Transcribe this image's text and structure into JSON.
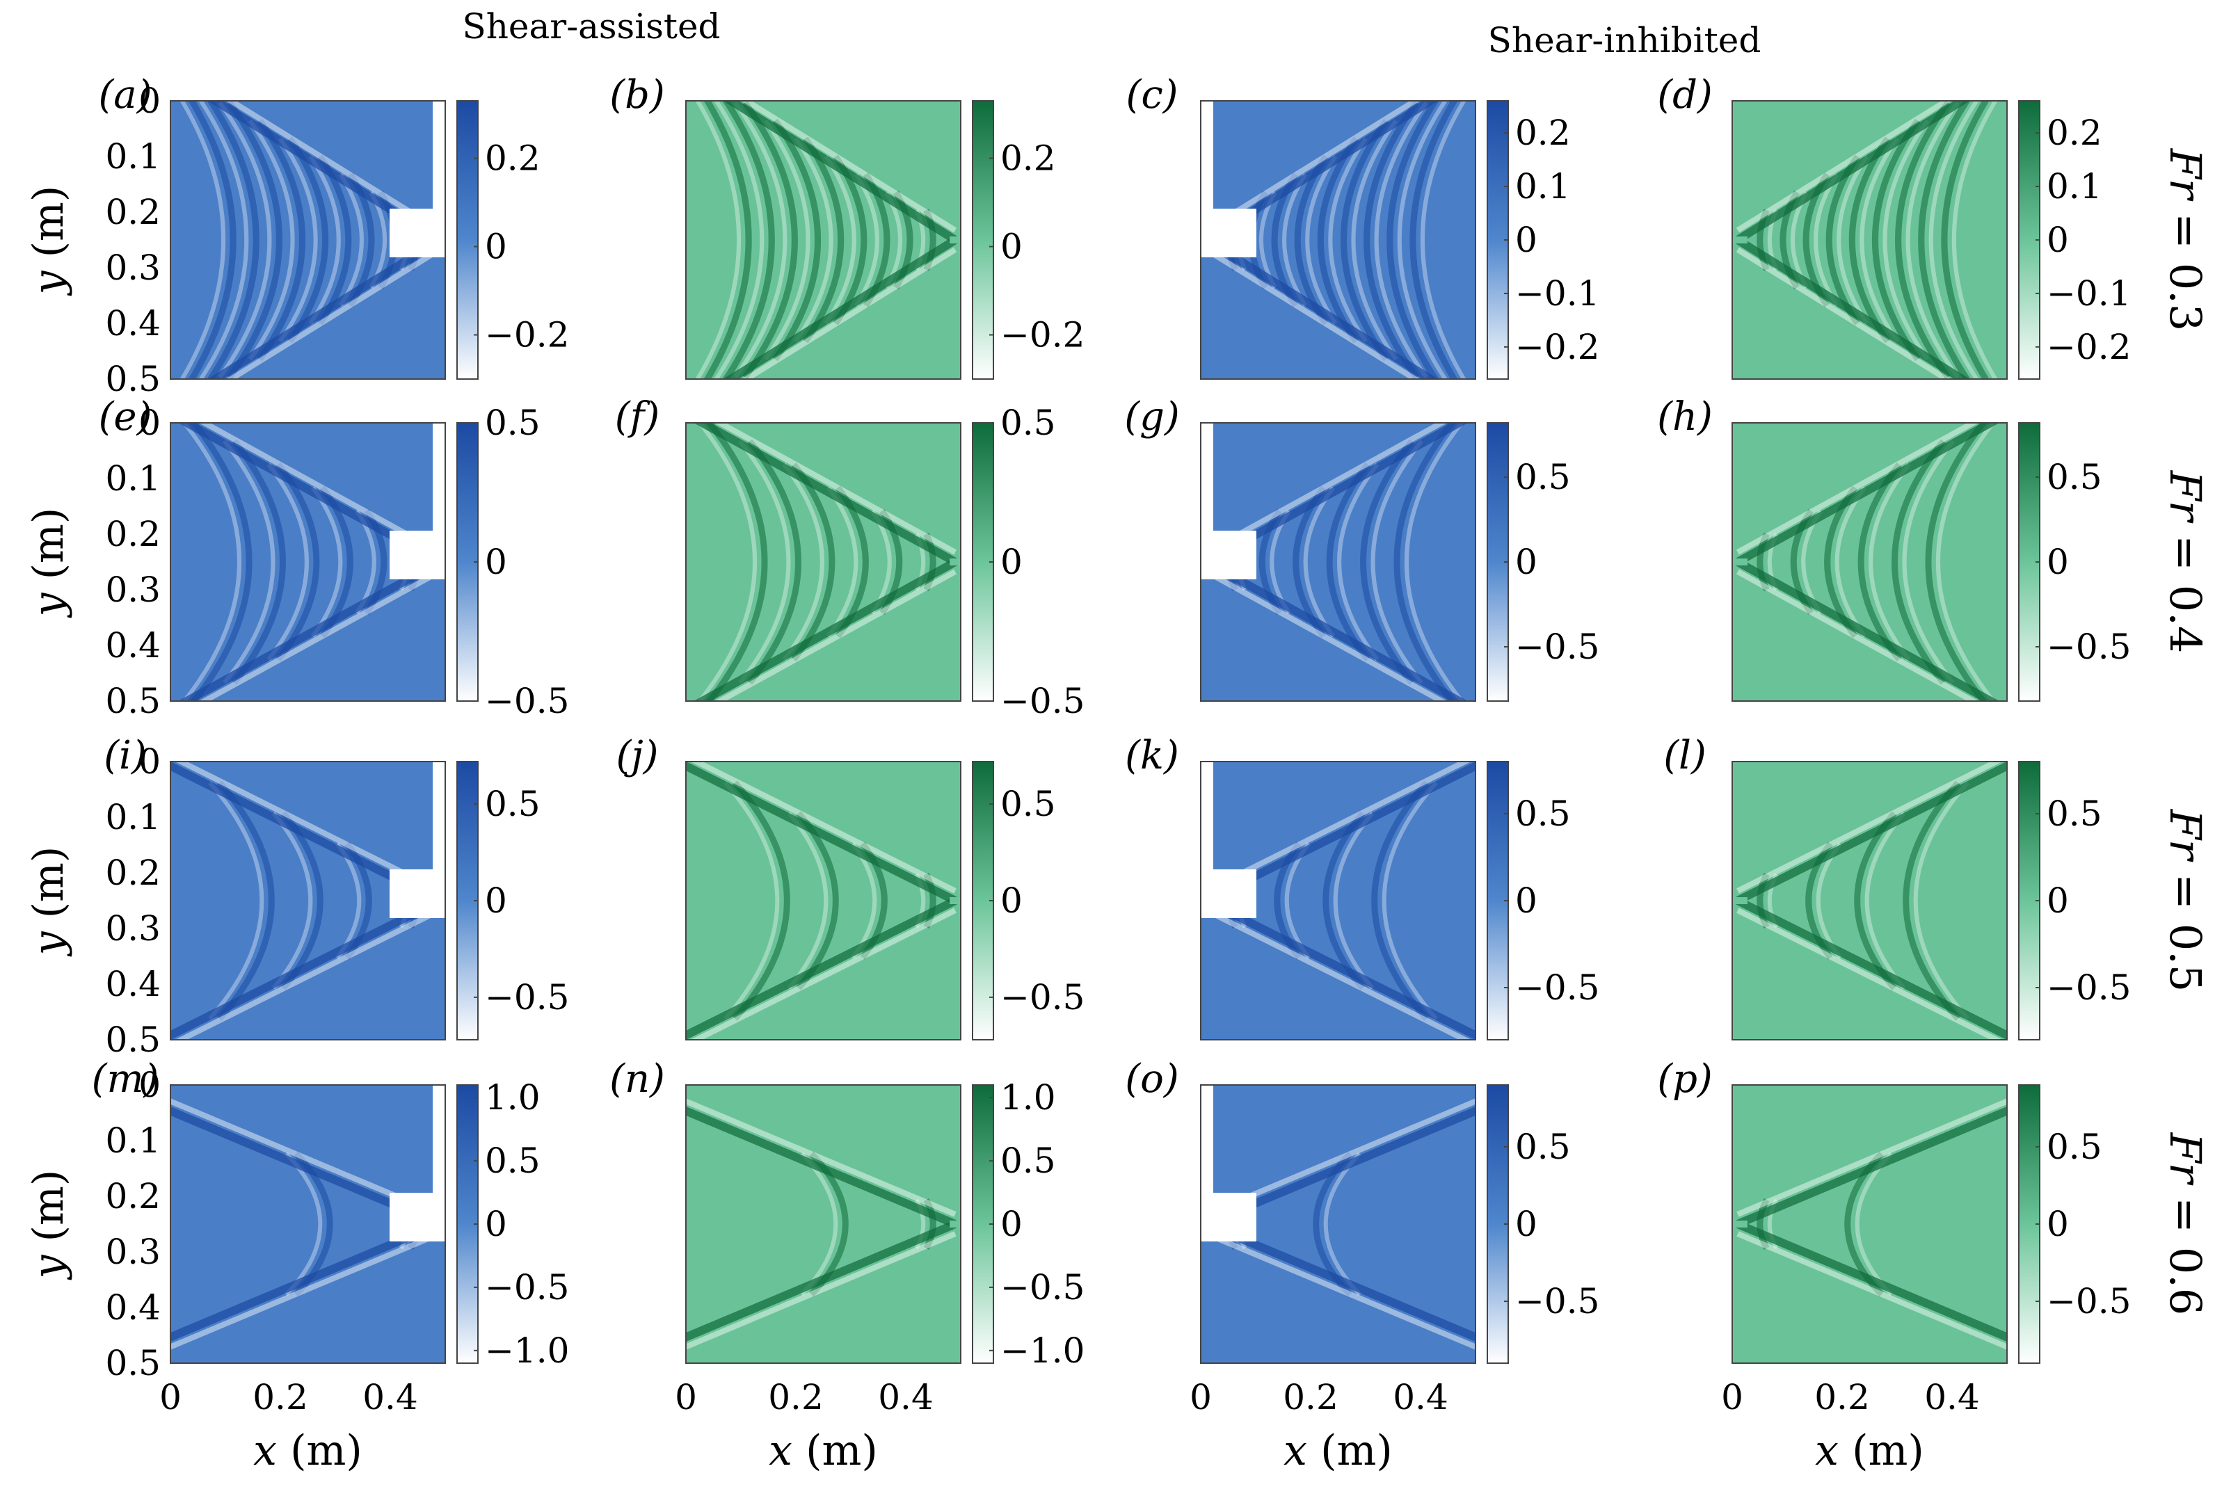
{
  "figure": {
    "column_headers": {
      "left": "Shear-assisted",
      "right": "Shear-inhibited"
    },
    "row_labels": [
      {
        "var": "Fr",
        "text": " = 0.3"
      },
      {
        "var": "Fr",
        "text": " = 0.4"
      },
      {
        "var": "Fr",
        "text": " = 0.5"
      },
      {
        "var": "Fr",
        "text": " = 0.6"
      }
    ],
    "ylabel": {
      "var": "y",
      "unit": " (m)"
    },
    "xlabel": {
      "var": "x",
      "unit": " (m)"
    },
    "colors": {
      "blue_dark": "#1c4aa3",
      "blue_mid": "#4f86cc",
      "blue_light": "#ffffff",
      "green_dark": "#0e6b3a",
      "green_mid": "#6cc59a",
      "green_light": "#ffffff",
      "mask": "#ffffff"
    }
  },
  "chart_data": [
    {
      "label": "(a)",
      "type": "heatmap",
      "kind": "measured",
      "cmap": "blue",
      "Fr": 0.3,
      "flow": "shear-assisted",
      "source_x": 0.49,
      "xlim": [
        0,
        0.5
      ],
      "ylim": [
        0,
        0.5
      ],
      "xticks": [
        "0",
        "0.2",
        "0.4"
      ],
      "yticks": [
        "0",
        "0.1",
        "0.2",
        "0.3",
        "0.4",
        "0.5"
      ],
      "clim": [
        -0.3,
        0.33
      ],
      "cticks": [
        "0.2",
        "0",
        "−0.2"
      ],
      "ctick_values": [
        0.2,
        0,
        -0.2
      ]
    },
    {
      "label": "(b)",
      "type": "heatmap",
      "kind": "simulated",
      "cmap": "green",
      "Fr": 0.3,
      "flow": "shear-assisted",
      "source_x": 0.49,
      "xlim": [
        0,
        0.5
      ],
      "ylim": [
        0,
        0.5
      ],
      "xticks": [
        "0",
        "0.2",
        "0.4"
      ],
      "clim": [
        -0.3,
        0.33
      ],
      "cticks": [
        "0.2",
        "0",
        "−0.2"
      ],
      "ctick_values": [
        0.2,
        0,
        -0.2
      ]
    },
    {
      "label": "(c)",
      "type": "heatmap",
      "kind": "measured",
      "cmap": "blue",
      "Fr": 0.3,
      "flow": "shear-inhibited",
      "source_x": 0.01,
      "xlim": [
        0,
        0.5
      ],
      "ylim": [
        0,
        0.5
      ],
      "xticks": [
        "0",
        "0.2",
        "0.4"
      ],
      "clim": [
        -0.26,
        0.26
      ],
      "cticks": [
        "0.2",
        "0.1",
        "0",
        "−0.1",
        "−0.2"
      ],
      "ctick_values": [
        0.2,
        0.1,
        0,
        -0.1,
        -0.2
      ]
    },
    {
      "label": "(d)",
      "type": "heatmap",
      "kind": "simulated",
      "cmap": "green",
      "Fr": 0.3,
      "flow": "shear-inhibited",
      "source_x": 0.01,
      "xlim": [
        0,
        0.5
      ],
      "ylim": [
        0,
        0.5
      ],
      "xticks": [
        "0",
        "0.2",
        "0.4"
      ],
      "clim": [
        -0.26,
        0.26
      ],
      "cticks": [
        "0.2",
        "0.1",
        "0",
        "−0.1",
        "−0.2"
      ],
      "ctick_values": [
        0.2,
        0.1,
        0,
        -0.1,
        -0.2
      ]
    },
    {
      "label": "(e)",
      "type": "heatmap",
      "kind": "measured",
      "cmap": "blue",
      "Fr": 0.4,
      "flow": "shear-assisted",
      "source_x": 0.49,
      "xlim": [
        0,
        0.5
      ],
      "ylim": [
        0,
        0.5
      ],
      "xticks": [
        "0",
        "0.2",
        "0.4"
      ],
      "yticks": [
        "0",
        "0.1",
        "0.2",
        "0.3",
        "0.4",
        "0.5"
      ],
      "clim": [
        -0.5,
        0.5
      ],
      "cticks": [
        "0.5",
        "0",
        "−0.5"
      ],
      "ctick_values": [
        0.5,
        0,
        -0.5
      ]
    },
    {
      "label": "(f)",
      "type": "heatmap",
      "kind": "simulated",
      "cmap": "green",
      "Fr": 0.4,
      "flow": "shear-assisted",
      "source_x": 0.49,
      "xlim": [
        0,
        0.5
      ],
      "ylim": [
        0,
        0.5
      ],
      "xticks": [
        "0",
        "0.2",
        "0.4"
      ],
      "clim": [
        -0.5,
        0.5
      ],
      "cticks": [
        "0.5",
        "0",
        "−0.5"
      ],
      "ctick_values": [
        0.5,
        0,
        -0.5
      ]
    },
    {
      "label": "(g)",
      "type": "heatmap",
      "kind": "measured",
      "cmap": "blue",
      "Fr": 0.4,
      "flow": "shear-inhibited",
      "source_x": 0.01,
      "xlim": [
        0,
        0.5
      ],
      "ylim": [
        0,
        0.5
      ],
      "xticks": [
        "0",
        "0.2",
        "0.4"
      ],
      "clim": [
        -0.82,
        0.82
      ],
      "cticks": [
        "0.5",
        "0",
        "−0.5"
      ],
      "ctick_values": [
        0.5,
        0,
        -0.5
      ]
    },
    {
      "label": "(h)",
      "type": "heatmap",
      "kind": "simulated",
      "cmap": "green",
      "Fr": 0.4,
      "flow": "shear-inhibited",
      "source_x": 0.01,
      "xlim": [
        0,
        0.5
      ],
      "ylim": [
        0,
        0.5
      ],
      "xticks": [
        "0",
        "0.2",
        "0.4"
      ],
      "clim": [
        -0.82,
        0.82
      ],
      "cticks": [
        "0.5",
        "0",
        "−0.5"
      ],
      "ctick_values": [
        0.5,
        0,
        -0.5
      ]
    },
    {
      "label": "(i)",
      "type": "heatmap",
      "kind": "measured",
      "cmap": "blue",
      "Fr": 0.5,
      "flow": "shear-assisted",
      "source_x": 0.49,
      "xlim": [
        0,
        0.5
      ],
      "ylim": [
        0,
        0.5
      ],
      "xticks": [
        "0",
        "0.2",
        "0.4"
      ],
      "yticks": [
        "0",
        "0.1",
        "0.2",
        "0.3",
        "0.4",
        "0.5"
      ],
      "clim": [
        -0.72,
        0.72
      ],
      "cticks": [
        "0.5",
        "0",
        "−0.5"
      ],
      "ctick_values": [
        0.5,
        0,
        -0.5
      ]
    },
    {
      "label": "(j)",
      "type": "heatmap",
      "kind": "simulated",
      "cmap": "green",
      "Fr": 0.5,
      "flow": "shear-assisted",
      "source_x": 0.49,
      "xlim": [
        0,
        0.5
      ],
      "ylim": [
        0,
        0.5
      ],
      "xticks": [
        "0",
        "0.2",
        "0.4"
      ],
      "clim": [
        -0.72,
        0.72
      ],
      "cticks": [
        "0.5",
        "0",
        "−0.5"
      ],
      "ctick_values": [
        0.5,
        0,
        -0.5
      ]
    },
    {
      "label": "(k)",
      "type": "heatmap",
      "kind": "measured",
      "cmap": "blue",
      "Fr": 0.5,
      "flow": "shear-inhibited",
      "source_x": 0.01,
      "xlim": [
        0,
        0.5
      ],
      "ylim": [
        0,
        0.5
      ],
      "xticks": [
        "0",
        "0.2",
        "0.4"
      ],
      "clim": [
        -0.8,
        0.8
      ],
      "cticks": [
        "0.5",
        "0",
        "−0.5"
      ],
      "ctick_values": [
        0.5,
        0,
        -0.5
      ]
    },
    {
      "label": "(l)",
      "type": "heatmap",
      "kind": "simulated",
      "cmap": "green",
      "Fr": 0.5,
      "flow": "shear-inhibited",
      "source_x": 0.01,
      "xlim": [
        0,
        0.5
      ],
      "ylim": [
        0,
        0.5
      ],
      "xticks": [
        "0",
        "0.2",
        "0.4"
      ],
      "clim": [
        -0.8,
        0.8
      ],
      "cticks": [
        "0.5",
        "0",
        "−0.5"
      ],
      "ctick_values": [
        0.5,
        0,
        -0.5
      ]
    },
    {
      "label": "(m)",
      "type": "heatmap",
      "kind": "measured",
      "cmap": "blue",
      "Fr": 0.6,
      "flow": "shear-assisted",
      "source_x": 0.49,
      "xlim": [
        0,
        0.5
      ],
      "ylim": [
        0,
        0.5
      ],
      "xticks": [
        "0",
        "0.2",
        "0.4"
      ],
      "yticks": [
        "0",
        "0.1",
        "0.2",
        "0.3",
        "0.4",
        "0.5"
      ],
      "clim": [
        -1.1,
        1.1
      ],
      "cticks": [
        "1.0",
        "0.5",
        "0",
        "−0.5",
        "−1.0"
      ],
      "ctick_values": [
        1.0,
        0.5,
        0,
        -0.5,
        -1.0
      ]
    },
    {
      "label": "(n)",
      "type": "heatmap",
      "kind": "simulated",
      "cmap": "green",
      "Fr": 0.6,
      "flow": "shear-assisted",
      "source_x": 0.49,
      "xlim": [
        0,
        0.5
      ],
      "ylim": [
        0,
        0.5
      ],
      "xticks": [
        "0",
        "0.2",
        "0.4"
      ],
      "clim": [
        -1.1,
        1.1
      ],
      "cticks": [
        "1.0",
        "0.5",
        "0",
        "−0.5",
        "−1.0"
      ],
      "ctick_values": [
        1.0,
        0.5,
        0,
        -0.5,
        -1.0
      ]
    },
    {
      "label": "(o)",
      "type": "heatmap",
      "kind": "measured",
      "cmap": "blue",
      "Fr": 0.6,
      "flow": "shear-inhibited",
      "source_x": 0.01,
      "xlim": [
        0,
        0.5
      ],
      "ylim": [
        0,
        0.5
      ],
      "xticks": [
        "0",
        "0.2",
        "0.4"
      ],
      "clim": [
        -0.9,
        0.9
      ],
      "cticks": [
        "0.5",
        "0",
        "−0.5"
      ],
      "ctick_values": [
        0.5,
        0,
        -0.5
      ]
    },
    {
      "label": "(p)",
      "type": "heatmap",
      "kind": "simulated",
      "cmap": "green",
      "Fr": 0.6,
      "flow": "shear-inhibited",
      "source_x": 0.01,
      "xlim": [
        0,
        0.5
      ],
      "ylim": [
        0,
        0.5
      ],
      "xticks": [
        "0",
        "0.2",
        "0.4"
      ],
      "clim": [
        -0.9,
        0.9
      ],
      "cticks": [
        "0.5",
        "0",
        "−0.5"
      ],
      "ctick_values": [
        0.5,
        0,
        -0.5
      ]
    }
  ]
}
